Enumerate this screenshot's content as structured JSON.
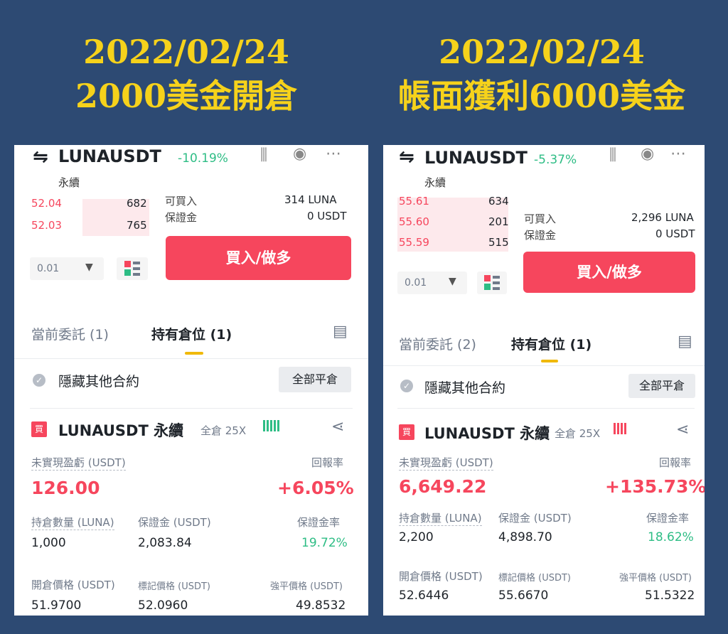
{
  "left": {
    "headline_date": "2022/02/24",
    "headline_text": "2000美金開倉",
    "symbol": "LUNAUSDT",
    "change": "-10.19%",
    "contract_type": "永續",
    "orderbook": [
      {
        "price": "52.04",
        "qty": "682"
      },
      {
        "price": "52.03",
        "qty": "765"
      }
    ],
    "buyable_label": "可買入",
    "buyable_value": "314 LUNA",
    "margin_label": "保證金",
    "margin_value": "0 USDT",
    "depth_select": "0.01",
    "buy_button": "買入/做多",
    "tab_orders": "當前委託 (1)",
    "tab_positions": "持有倉位 (1)",
    "hide_label": "隱藏其他合約",
    "close_all": "全部平倉",
    "buy_tag": "買",
    "position_name": "LUNAUSDT 永續",
    "position_mode": "全倉 25X",
    "pnl_label": "未實現盈虧 (USDT)",
    "roe_label": "回報率",
    "pnl_value": "126.00",
    "roe_value": "+6.05%",
    "size_label": "持倉數量 (LUNA)",
    "margin2_label": "保證金 (USDT)",
    "margin_ratio_label": "保證金率",
    "size_value": "1,000",
    "margin2_value": "2,083.84",
    "margin_ratio_value": "19.72%",
    "entry_label": "開倉價格 (USDT)",
    "mark_label": "標記價格 (USDT)",
    "liq_label": "強平價格 (USDT)",
    "entry_value": "51.9700",
    "mark_value": "52.0960",
    "liq_value": "49.8532",
    "risk_color": "#2ebd85"
  },
  "right": {
    "headline_date": "2022/02/24",
    "headline_text": "帳面獲利6000美金",
    "symbol": "LUNAUSDT",
    "change": "-5.37%",
    "contract_type": "永續",
    "orderbook": [
      {
        "price": "55.61",
        "qty": "634"
      },
      {
        "price": "55.60",
        "qty": "201"
      },
      {
        "price": "55.59",
        "qty": "515"
      }
    ],
    "buyable_label": "可買入",
    "buyable_value": "2,296 LUNA",
    "margin_label": "保證金",
    "margin_value": "0 USDT",
    "depth_select": "0.01",
    "buy_button": "買入/做多",
    "tab_orders": "當前委託 (2)",
    "tab_positions": "持有倉位 (1)",
    "hide_label": "隱藏其他合約",
    "close_all": "全部平倉",
    "buy_tag": "買",
    "position_name": "LUNAUSDT 永續",
    "position_mode": "全倉 25X",
    "pnl_label": "未實現盈虧 (USDT)",
    "roe_label": "回報率",
    "pnl_value": "6,649.22",
    "roe_value": "+135.73%",
    "size_label": "持倉數量 (LUNA)",
    "margin2_label": "保證金 (USDT)",
    "margin_ratio_label": "保證金率",
    "size_value": "2,200",
    "margin2_value": "4,898.70",
    "margin_ratio_value": "18.62%",
    "entry_label": "開倉價格 (USDT)",
    "mark_label": "標記價格 (USDT)",
    "liq_label": "強平價格 (USDT)",
    "entry_value": "52.6446",
    "mark_value": "55.6670",
    "liq_value": "51.5322",
    "risk_color": "#f6465d"
  },
  "colors": {
    "background": "#2d4a73",
    "headline": "#f6d21b",
    "sell_red": "#f6465d",
    "buy_green": "#2ebd85",
    "tab_accent": "#f0b90b"
  }
}
